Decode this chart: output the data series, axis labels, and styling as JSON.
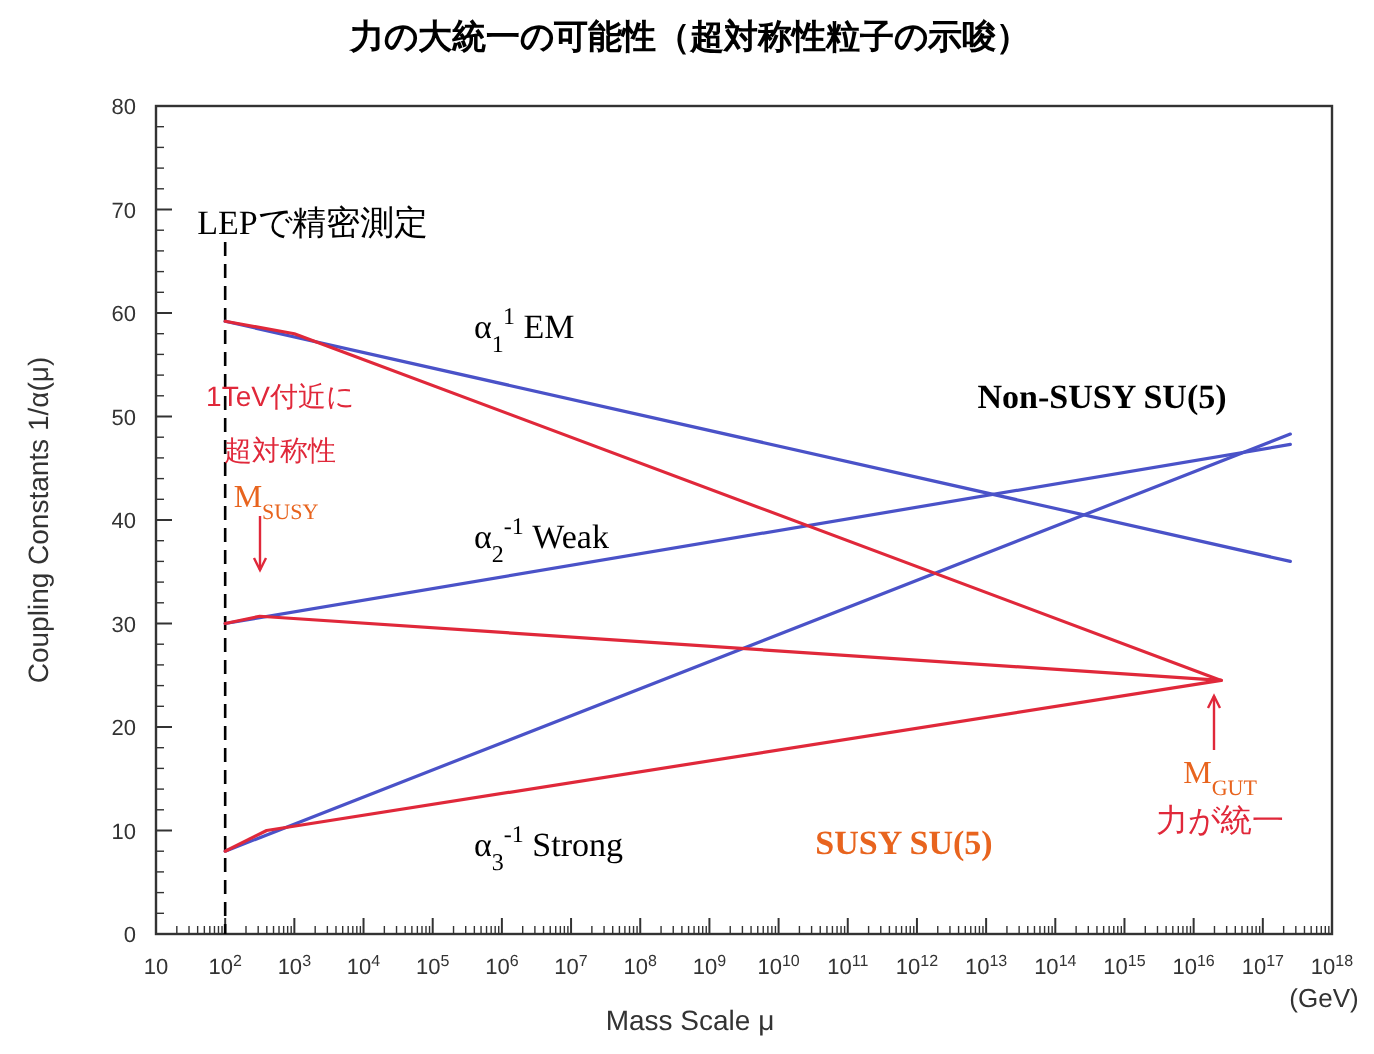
{
  "chart_data": {
    "type": "line",
    "title": "力の大統一の可能性（超対称性粒子の示唆）",
    "xlabel": "Mass Scale μ",
    "ylabel": "Coupling Constants  1/α(μ)",
    "log": "x",
    "xlim": [
      10,
      1e+18
    ],
    "ylim": [
      0,
      80
    ],
    "xticks": [
      10,
      {
        "value": 100.0,
        "label": "10$^{2}$"
      },
      {
        "value": 1000.0,
        "label": "10$^{3}$"
      },
      {
        "value": 10000.0,
        "label": "10$^{4}$"
      },
      {
        "value": 100000.0,
        "label": "10$^{5}$"
      },
      {
        "value": 1000000.0,
        "label": "10$^{6}$"
      },
      {
        "value": 10000000.0,
        "label": "10$^{7}$"
      },
      {
        "value": 100000000.0,
        "label": "10$^{8}$"
      },
      {
        "value": 1000000000.0,
        "label": "10$^{9}$"
      },
      {
        "value": 10000000000.0,
        "label": "10$^{10}$"
      },
      {
        "value": 100000000000.0,
        "label": "10$^{11}$"
      },
      {
        "value": 1000000000000.0,
        "label": "10$^{12}$"
      },
      {
        "value": 10000000000000.0,
        "label": "10$^{13}$"
      },
      {
        "value": 100000000000000.0,
        "label": "10$^{14}$"
      },
      {
        "value": 1000000000000000.0,
        "label": "10$^{15}$"
      },
      {
        "value": 1e+16,
        "label": "10$^{16}$"
      },
      {
        "value": 1e+17,
        "label": "10$^{17}$"
      },
      {
        "value": 1e+18,
        "label": "10$^{18}$"
      }
    ],
    "yticks": [
      0,
      10,
      20,
      30,
      40,
      50,
      60,
      70,
      80
    ],
    "grid": false,
    "marker": "none",
    "line_style": "solid",
    "series": [
      {
        "color": "#4a52c8",
        "x": [
          100,
          2.5e+17
        ],
        "values": [
          59.2,
          36
        ]
      },
      {
        "color": "#4a52c8",
        "x": [
          100,
          2.5e+17
        ],
        "values": [
          30,
          47.3
        ]
      },
      {
        "color": "#4a52c8",
        "x": [
          100,
          2.5e+17
        ],
        "values": [
          8,
          48.3
        ]
      },
      {
        "color": "#e0283a",
        "x": [
          100,
          1000,
          2.5e+16
        ],
        "values": [
          59.2,
          58,
          24.5
        ]
      },
      {
        "color": "#e0283a",
        "x": [
          100,
          316,
          2.5e+16
        ],
        "values": [
          30,
          30.7,
          24.5
        ]
      },
      {
        "color": "#e0283a",
        "x": [
          100,
          398,
          2.5e+16
        ],
        "values": [
          8,
          10,
          24.5
        ]
      }
    ],
    "ref_lines": [
      {
        "axis": "x",
        "value": 100,
        "label": "LEPで精密測定",
        "color": "#000000",
        "line_style": "dashed"
      }
    ],
    "annotations": [
      "α$_{1}$$^{1}$ EM",
      "α$_{2}$$^{-1}$ Weak",
      "α$_{3}$$^{-1}$ Strong",
      "Non-SUSY SU(5)",
      "SUSY SU(5)",
      "1TeV付近に",
      "超対称性",
      "M$_{SUSY}$",
      "M$_{GUT}$",
      "力が統一",
      "(GeV)"
    ]
  }
}
